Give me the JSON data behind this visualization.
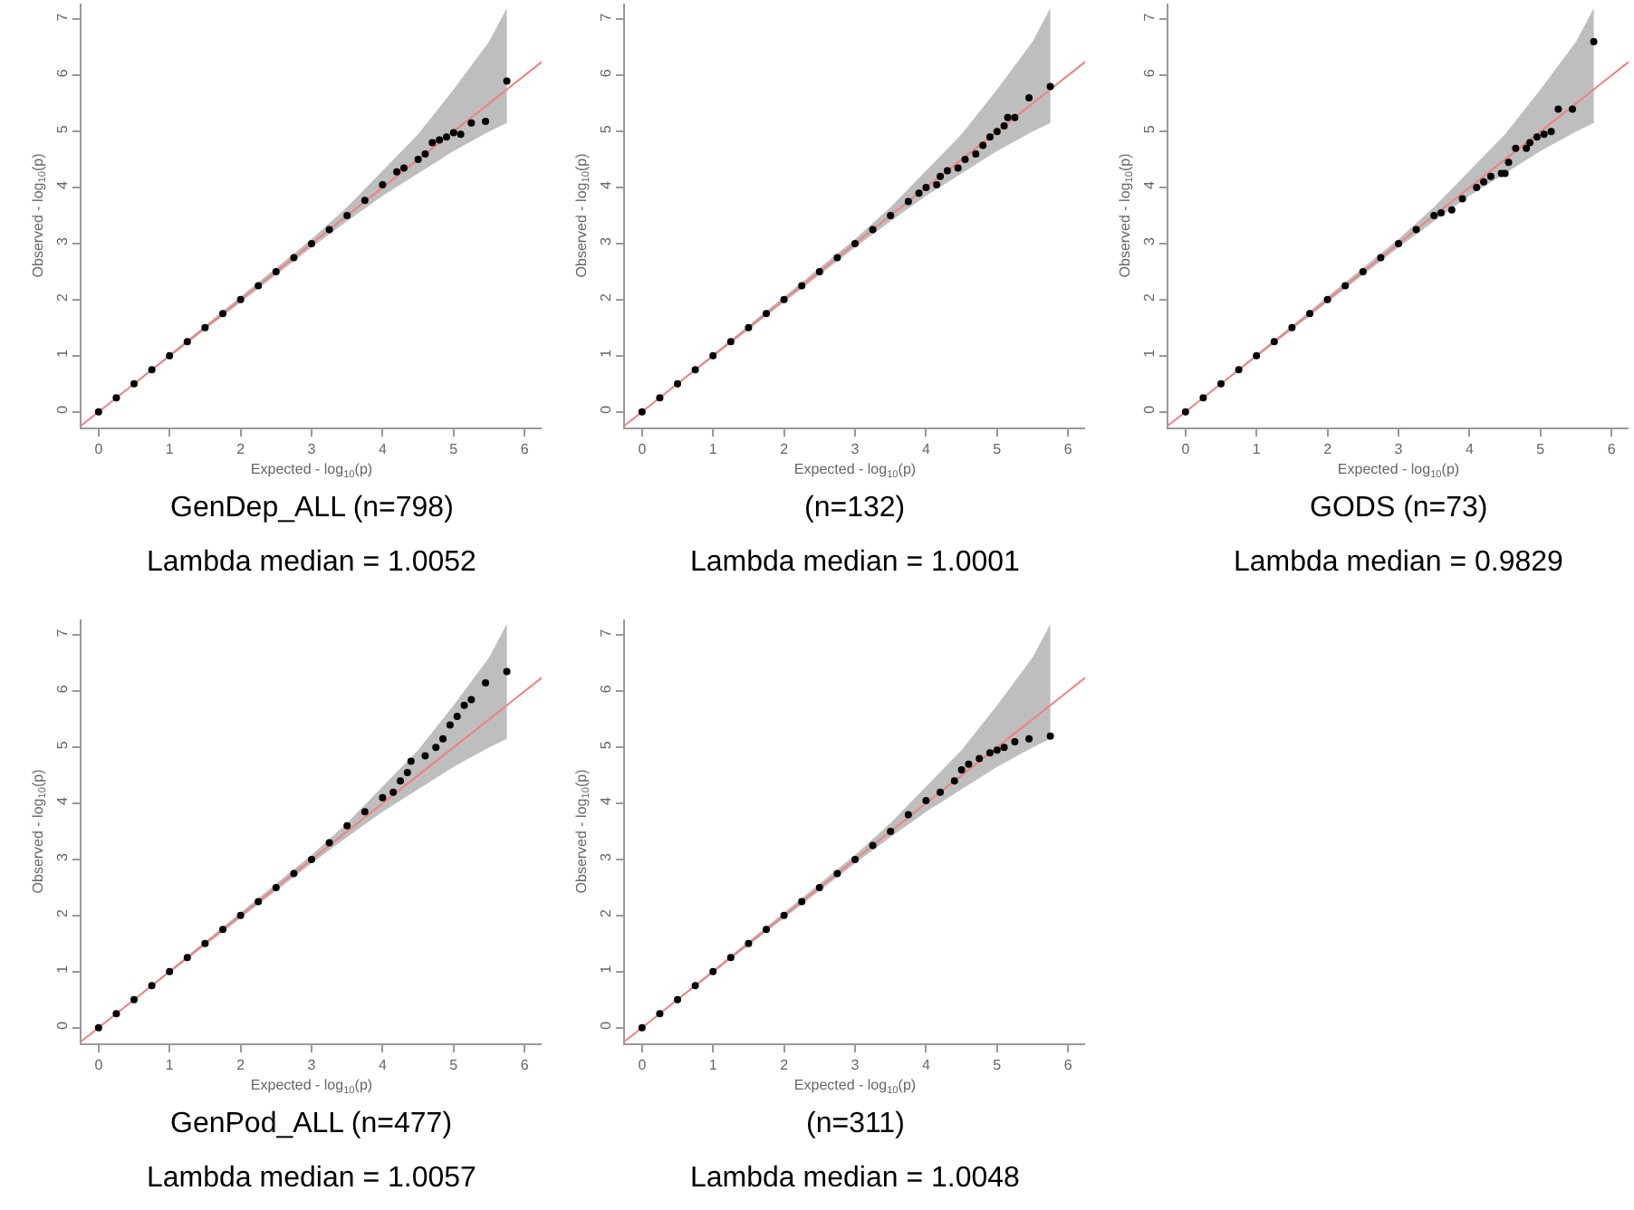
{
  "chart_data": [
    {
      "type": "scatter",
      "xlabel": "Expected - log$_{10}$(p)",
      "ylabel": "Observed - log$_{10}$(p)",
      "xlim": [
        -0.24,
        6.24
      ],
      "ylim": [
        -0.28,
        7.28
      ],
      "xticks": [
        0,
        1,
        2,
        3,
        4,
        5,
        6
      ],
      "yticks": [
        0,
        1,
        2,
        3,
        4,
        5,
        6,
        7
      ],
      "annotations": [
        "GenDep_ALL (n=798)",
        "Lambda median = 1.0052"
      ],
      "series": [
        {
          "type": "line",
          "marker": "none",
          "color": "#f08080",
          "x": [
            -0.24,
            0,
            3,
            3.5,
            4,
            4.5,
            5,
            5.5,
            5.75,
            6.24
          ],
          "values": [
            -0.24,
            0,
            3,
            3.5,
            4,
            4.5,
            5,
            5.5,
            5.75,
            6.24
          ],
          "lower": [
            null,
            0,
            2.93,
            3.4,
            3.85,
            4.25,
            4.65,
            5.0,
            5.15,
            null
          ],
          "upper": [
            null,
            0,
            3.08,
            3.65,
            4.3,
            4.95,
            5.75,
            6.6,
            7.2,
            null
          ]
        },
        {
          "marker": "circle",
          "color": "#000000",
          "x": [
            0,
            0.25,
            0.5,
            0.75,
            1,
            1.25,
            1.5,
            1.75,
            2,
            2.25,
            2.5,
            2.75,
            3,
            3.25,
            3.5,
            3.75,
            4.0,
            4.2,
            4.3,
            4.5,
            4.6,
            4.7,
            4.8,
            4.9,
            5.0,
            5.1,
            5.25,
            5.45,
            5.75
          ],
          "values": [
            0,
            0.25,
            0.5,
            0.75,
            1,
            1.25,
            1.5,
            1.75,
            2,
            2.25,
            2.5,
            2.75,
            3,
            3.25,
            3.5,
            3.77,
            4.05,
            4.28,
            4.35,
            4.5,
            4.6,
            4.8,
            4.85,
            4.9,
            4.98,
            4.95,
            5.15,
            5.18,
            5.9
          ]
        }
      ]
    },
    {
      "type": "scatter",
      "xlabel": "Expected - log$_{10}$(p)",
      "ylabel": "Observed - log$_{10}$(p)",
      "xlim": [
        -0.24,
        6.24
      ],
      "ylim": [
        -0.28,
        7.28
      ],
      "xticks": [
        0,
        1,
        2,
        3,
        4,
        5,
        6
      ],
      "yticks": [
        0,
        1,
        2,
        3,
        4,
        5,
        6,
        7
      ],
      "annotations": [
        "(n=132)",
        "Lambda median = 1.0001"
      ],
      "series": [
        {
          "type": "line",
          "marker": "none",
          "color": "#f08080",
          "x": [
            -0.24,
            0,
            3,
            3.5,
            4,
            4.5,
            5,
            5.5,
            5.75,
            6.24
          ],
          "values": [
            -0.24,
            0,
            3,
            3.5,
            4,
            4.5,
            5,
            5.5,
            5.75,
            6.24
          ],
          "lower": [
            null,
            0,
            2.93,
            3.4,
            3.85,
            4.25,
            4.65,
            5.0,
            5.15,
            null
          ],
          "upper": [
            null,
            0,
            3.08,
            3.65,
            4.3,
            4.95,
            5.75,
            6.6,
            7.2,
            null
          ]
        },
        {
          "marker": "circle",
          "color": "#000000",
          "x": [
            0,
            0.25,
            0.5,
            0.75,
            1,
            1.25,
            1.5,
            1.75,
            2,
            2.25,
            2.5,
            2.75,
            3,
            3.25,
            3.5,
            3.75,
            3.9,
            4.0,
            4.15,
            4.2,
            4.3,
            4.45,
            4.55,
            4.7,
            4.8,
            4.9,
            5.0,
            5.1,
            5.15,
            5.25,
            5.45,
            5.75
          ],
          "values": [
            0,
            0.25,
            0.5,
            0.75,
            1,
            1.25,
            1.5,
            1.75,
            2,
            2.25,
            2.5,
            2.75,
            3,
            3.25,
            3.5,
            3.75,
            3.9,
            4.0,
            4.05,
            4.2,
            4.3,
            4.35,
            4.5,
            4.6,
            4.75,
            4.9,
            5.0,
            5.1,
            5.25,
            5.25,
            5.6,
            5.8
          ]
        }
      ]
    },
    {
      "type": "scatter",
      "xlabel": "Expected - log$_{10}$(p)",
      "ylabel": "Observed - log$_{10}$(p)",
      "xlim": [
        -0.24,
        6.24
      ],
      "ylim": [
        -0.28,
        7.28
      ],
      "xticks": [
        0,
        1,
        2,
        3,
        4,
        5,
        6
      ],
      "yticks": [
        0,
        1,
        2,
        3,
        4,
        5,
        6,
        7
      ],
      "annotations": [
        "GODS (n=73)",
        "Lambda median = 0.9829"
      ],
      "series": [
        {
          "type": "line",
          "marker": "none",
          "color": "#f08080",
          "x": [
            -0.24,
            0,
            3,
            3.5,
            4,
            4.5,
            5,
            5.5,
            5.75,
            6.24
          ],
          "values": [
            -0.24,
            0,
            3,
            3.5,
            4,
            4.5,
            5,
            5.5,
            5.75,
            6.24
          ],
          "lower": [
            null,
            0,
            2.93,
            3.4,
            3.85,
            4.25,
            4.65,
            5.0,
            5.15,
            null
          ],
          "upper": [
            null,
            0,
            3.08,
            3.65,
            4.3,
            4.95,
            5.75,
            6.6,
            7.2,
            null
          ]
        },
        {
          "marker": "circle",
          "color": "#000000",
          "x": [
            0,
            0.25,
            0.5,
            0.75,
            1,
            1.25,
            1.5,
            1.75,
            2,
            2.25,
            2.5,
            2.75,
            3,
            3.25,
            3.5,
            3.6,
            3.75,
            3.9,
            4.1,
            4.2,
            4.3,
            4.45,
            4.5,
            4.55,
            4.65,
            4.8,
            4.85,
            4.95,
            5.05,
            5.15,
            5.25,
            5.45,
            5.75
          ],
          "values": [
            0,
            0.25,
            0.5,
            0.75,
            1,
            1.25,
            1.5,
            1.75,
            2,
            2.25,
            2.5,
            2.75,
            3,
            3.25,
            3.5,
            3.55,
            3.6,
            3.8,
            4.0,
            4.1,
            4.2,
            4.25,
            4.25,
            4.45,
            4.7,
            4.7,
            4.8,
            4.9,
            4.95,
            5.0,
            5.4,
            5.4,
            6.6
          ]
        }
      ]
    },
    {
      "type": "scatter",
      "xlabel": "Expected - log$_{10}$(p)",
      "ylabel": "Observed - log$_{10}$(p)",
      "xlim": [
        -0.24,
        6.24
      ],
      "ylim": [
        -0.28,
        7.28
      ],
      "xticks": [
        0,
        1,
        2,
        3,
        4,
        5,
        6
      ],
      "yticks": [
        0,
        1,
        2,
        3,
        4,
        5,
        6,
        7
      ],
      "annotations": [
        "GenPod_ALL (n=477)",
        "Lambda median = 1.0057"
      ],
      "series": [
        {
          "type": "line",
          "marker": "none",
          "color": "#f08080",
          "x": [
            -0.24,
            0,
            3,
            3.5,
            4,
            4.5,
            5,
            5.5,
            5.75,
            6.24
          ],
          "values": [
            -0.24,
            0,
            3,
            3.5,
            4,
            4.5,
            5,
            5.5,
            5.75,
            6.24
          ],
          "lower": [
            null,
            0,
            2.93,
            3.4,
            3.85,
            4.25,
            4.65,
            5.0,
            5.15,
            null
          ],
          "upper": [
            null,
            0,
            3.08,
            3.65,
            4.3,
            4.95,
            5.75,
            6.6,
            7.2,
            null
          ]
        },
        {
          "marker": "circle",
          "color": "#000000",
          "x": [
            0,
            0.25,
            0.5,
            0.75,
            1,
            1.25,
            1.5,
            1.75,
            2,
            2.25,
            2.5,
            2.75,
            3,
            3.25,
            3.5,
            3.75,
            4.0,
            4.15,
            4.25,
            4.35,
            4.4,
            4.6,
            4.75,
            4.85,
            4.95,
            5.05,
            5.15,
            5.25,
            5.45,
            5.75
          ],
          "values": [
            0,
            0.25,
            0.5,
            0.75,
            1,
            1.25,
            1.5,
            1.75,
            2,
            2.25,
            2.5,
            2.75,
            3,
            3.3,
            3.6,
            3.85,
            4.1,
            4.2,
            4.4,
            4.55,
            4.75,
            4.85,
            5.0,
            5.15,
            5.4,
            5.55,
            5.75,
            5.85,
            6.15,
            6.35
          ]
        }
      ]
    },
    {
      "type": "scatter",
      "xlabel": "Expected - log$_{10}$(p)",
      "ylabel": "Observed - log$_{10}$(p)",
      "xlim": [
        -0.24,
        6.24
      ],
      "ylim": [
        -0.28,
        7.28
      ],
      "xticks": [
        0,
        1,
        2,
        3,
        4,
        5,
        6
      ],
      "yticks": [
        0,
        1,
        2,
        3,
        4,
        5,
        6,
        7
      ],
      "annotations": [
        "(n=311)",
        "Lambda median = 1.0048"
      ],
      "series": [
        {
          "type": "line",
          "marker": "none",
          "color": "#f08080",
          "x": [
            -0.24,
            0,
            3,
            3.5,
            4,
            4.5,
            5,
            5.5,
            5.75,
            6.24
          ],
          "values": [
            -0.24,
            0,
            3,
            3.5,
            4,
            4.5,
            5,
            5.5,
            5.75,
            6.24
          ],
          "lower": [
            null,
            0,
            2.93,
            3.4,
            3.85,
            4.25,
            4.65,
            5.0,
            5.15,
            null
          ],
          "upper": [
            null,
            0,
            3.08,
            3.65,
            4.3,
            4.95,
            5.75,
            6.6,
            7.2,
            null
          ]
        },
        {
          "marker": "circle",
          "color": "#000000",
          "x": [
            0,
            0.25,
            0.5,
            0.75,
            1,
            1.25,
            1.5,
            1.75,
            2,
            2.25,
            2.5,
            2.75,
            3,
            3.25,
            3.5,
            3.75,
            4.0,
            4.2,
            4.4,
            4.5,
            4.6,
            4.75,
            4.9,
            5.0,
            5.1,
            5.25,
            5.45,
            5.75
          ],
          "values": [
            0,
            0.25,
            0.5,
            0.75,
            1,
            1.25,
            1.5,
            1.75,
            2,
            2.25,
            2.5,
            2.75,
            3,
            3.25,
            3.5,
            3.8,
            4.05,
            4.2,
            4.4,
            4.6,
            4.7,
            4.8,
            4.9,
            4.95,
            5.0,
            5.1,
            5.15,
            5.2
          ]
        }
      ]
    }
  ]
}
